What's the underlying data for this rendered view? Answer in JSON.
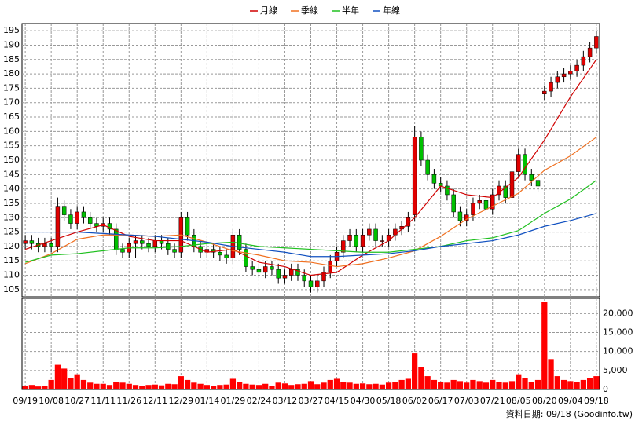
{
  "chart_data": {
    "type": "candlestick",
    "categories": [
      "09/19",
      "10/08",
      "10/27",
      "11/11",
      "11/26",
      "12/11",
      "12/29",
      "01/14",
      "01/29",
      "02/24",
      "03/12",
      "03/27",
      "04/15",
      "04/30",
      "05/18",
      "06/02",
      "06/17",
      "07/03",
      "07/21",
      "08/05",
      "08/20",
      "09/04",
      "09/18"
    ],
    "open": [
      121,
      122,
      121,
      120,
      121,
      120,
      134,
      131,
      128,
      132,
      130,
      128,
      127,
      128,
      126,
      119,
      118,
      121,
      122,
      121,
      120,
      122,
      121,
      119,
      118,
      130,
      124,
      120,
      118,
      119,
      118,
      117,
      116,
      124,
      119,
      113,
      112,
      111,
      113,
      112,
      109,
      110,
      112,
      110,
      108,
      106,
      108,
      111,
      115,
      118,
      122,
      124,
      120,
      124,
      126,
      122,
      122,
      124,
      126,
      127,
      131,
      158,
      150,
      145,
      142,
      141,
      138,
      132,
      129,
      131,
      135,
      136,
      133,
      138,
      141,
      137,
      146,
      152,
      145,
      143,
      173,
      174,
      177,
      179,
      180,
      181,
      183,
      186,
      189
    ],
    "high": [
      124,
      124,
      123,
      123,
      123,
      137,
      136,
      133,
      134,
      134,
      132,
      130,
      130,
      130,
      128,
      121,
      123,
      124,
      124,
      123,
      124,
      124,
      123,
      121,
      132,
      132,
      126,
      122,
      121,
      121,
      120,
      119,
      126,
      126,
      121,
      115,
      114,
      115,
      115,
      114,
      112,
      114,
      114,
      112,
      110,
      110,
      113,
      117,
      120,
      124,
      126,
      126,
      126,
      128,
      128,
      124,
      126,
      128,
      129,
      132,
      162,
      160,
      152,
      147,
      144,
      143,
      140,
      134,
      133,
      137,
      138,
      138,
      140,
      143,
      143,
      148,
      154,
      154,
      147,
      145,
      176,
      179,
      181,
      182,
      183,
      185,
      188,
      191,
      195
    ],
    "low": [
      119,
      119,
      118,
      118,
      118,
      118,
      129,
      126,
      126,
      128,
      126,
      125,
      125,
      124,
      117,
      116,
      116,
      116,
      119,
      118,
      118,
      119,
      117,
      116,
      116,
      122,
      118,
      116,
      116,
      116,
      115,
      114,
      114,
      117,
      111,
      110,
      109,
      109,
      110,
      107,
      107,
      108,
      108,
      106,
      104,
      104,
      106,
      109,
      113,
      116,
      120,
      118,
      118,
      122,
      120,
      120,
      120,
      122,
      124,
      125,
      129,
      148,
      143,
      140,
      139,
      136,
      130,
      127,
      127,
      129,
      133,
      131,
      131,
      136,
      135,
      135,
      144,
      143,
      141,
      139,
      171,
      172,
      175,
      177,
      178,
      179,
      181,
      184,
      187
    ],
    "close": [
      122,
      121,
      120,
      121,
      120,
      134,
      131,
      128,
      132,
      130,
      128,
      127,
      128,
      126,
      119,
      118,
      121,
      122,
      121,
      120,
      122,
      121,
      119,
      118,
      130,
      124,
      120,
      118,
      119,
      118,
      117,
      116,
      124,
      119,
      113,
      112,
      111,
      113,
      112,
      109,
      110,
      112,
      110,
      108,
      106,
      108,
      111,
      115,
      118,
      122,
      124,
      120,
      124,
      126,
      122,
      122,
      124,
      126,
      127,
      130,
      158,
      150,
      145,
      142,
      141,
      138,
      132,
      129,
      131,
      135,
      136,
      133,
      138,
      141,
      137,
      146,
      152,
      145,
      143,
      141,
      174,
      177,
      179,
      180,
      181,
      183,
      186,
      189,
      193
    ],
    "volume": [
      900,
      1200,
      800,
      1000,
      2500,
      6500,
      5500,
      3000,
      4000,
      2500,
      1800,
      1500,
      1500,
      1200,
      2000,
      1800,
      1500,
      1200,
      1000,
      1200,
      1300,
      1100,
      1500,
      1400,
      3500,
      2500,
      1800,
      1500,
      1200,
      1000,
      1200,
      1300,
      2800,
      2000,
      1500,
      1300,
      1200,
      1500,
      1000,
      1800,
      1600,
      1200,
      1400,
      1500,
      2200,
      1400,
      1800,
      2500,
      2800,
      2000,
      1800,
      1500,
      1600,
      1400,
      1500,
      1300,
      1800,
      2000,
      2500,
      2800,
      9500,
      6000,
      3500,
      2500,
      2000,
      1800,
      2500,
      2200,
      1800,
      2500,
      2200,
      1800,
      2500,
      2000,
      1800,
      2200,
      4000,
      3000,
      2000,
      2500,
      23000,
      8000,
      3500,
      2500,
      2200,
      2000,
      2500,
      3000,
      3500
    ],
    "up_color": "#e00000",
    "down_color": "#00c000",
    "volume_color": "#ff0000",
    "series": [
      {
        "name": "月線",
        "color": "#d00000",
        "values": [
          119,
          122,
          125,
          127.5,
          123.5,
          122,
          122,
          118,
          119,
          114.5,
          113,
          110,
          111,
          117,
          122,
          130,
          141,
          138,
          137,
          144,
          157,
          172,
          185
        ]
      },
      {
        "name": "季線",
        "color": "#f07020",
        "values": [
          114,
          117.5,
          122.5,
          124,
          124,
          123.5,
          124,
          121.5,
          118.5,
          117,
          115,
          114.5,
          113,
          114,
          116,
          118.5,
          123.5,
          129.5,
          134,
          138.5,
          146.5,
          151.5,
          158
        ]
      },
      {
        "name": "半年",
        "color": "#20c020",
        "values": [
          114.5,
          117,
          117.5,
          118.5,
          119.5,
          119.5,
          120,
          121,
          121.5,
          120,
          119.5,
          119,
          118.5,
          118,
          118,
          119,
          120,
          122,
          123,
          125.5,
          131.5,
          136.5,
          143
        ]
      },
      {
        "name": "年線",
        "color": "#1050c0",
        "values": [
          125,
          125,
          125,
          124.5,
          124,
          123.5,
          122.5,
          121.5,
          120,
          119,
          118,
          116.5,
          116.5,
          117,
          117.5,
          118.5,
          120,
          121,
          122,
          124,
          127,
          129,
          131.5
        ]
      }
    ],
    "ylim": [
      102.5,
      197.5
    ],
    "yticks": [
      105,
      110,
      115,
      120,
      125,
      130,
      135,
      140,
      145,
      150,
      155,
      160,
      165,
      170,
      175,
      180,
      185,
      190,
      195
    ],
    "y2lim": [
      0,
      24000
    ],
    "y2ticks": [
      0,
      {
        "value": 5000,
        "label": "5,000"
      },
      {
        "value": 10000,
        "label": "10,000"
      },
      {
        "value": 15000,
        "label": "15,000"
      },
      {
        "value": 20000,
        "label": "20,000"
      }
    ],
    "grid": true,
    "footer": "資料日期: 09/18 (Goodinfo.tw)"
  }
}
